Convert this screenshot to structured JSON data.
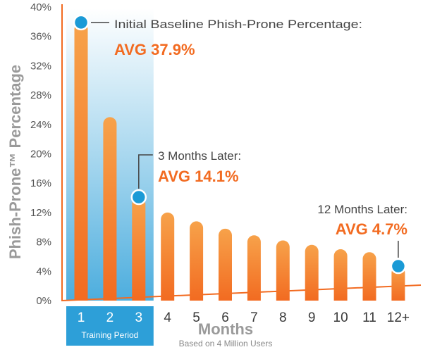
{
  "chart_data": {
    "type": "bar",
    "categories": [
      "1",
      "2",
      "3",
      "4",
      "5",
      "6",
      "7",
      "8",
      "9",
      "10",
      "11",
      "12+"
    ],
    "values": [
      37.9,
      25.0,
      14.1,
      12.0,
      10.8,
      9.8,
      8.9,
      8.2,
      7.6,
      7.0,
      6.6,
      4.7
    ],
    "ylim": [
      0,
      40
    ],
    "yticks": [
      "0%",
      "4%",
      "8%",
      "12%",
      "16%",
      "20%",
      "24%",
      "28%",
      "32%",
      "36%",
      "40%"
    ],
    "ylabel": "Phish-Prone™ Percentage",
    "xlabel": "Months",
    "xlabel_note": "Based on 4 Million Users",
    "training_period": {
      "label": "Training Period",
      "categories": [
        "1",
        "2",
        "3"
      ]
    },
    "annotations": [
      {
        "category": "1",
        "value": 37.9,
        "text": "Initial Baseline Phish-Prone Percentage:",
        "value_text": "AVG 37.9%"
      },
      {
        "category": "3",
        "value": 14.1,
        "text": "3 Months Later:",
        "value_text": "AVG 14.1%"
      },
      {
        "category": "12+",
        "value": 4.7,
        "text": "12 Months Later:",
        "value_text": "AVG 4.7%"
      }
    ],
    "colors": {
      "bar_top": "#f7a24a",
      "bar_bottom": "#f26b21",
      "marker": "#1a9ad6",
      "training_band": "#2d9fd8",
      "accent_text": "#f26b21",
      "axis": "#f26b21"
    },
    "grid": false,
    "legend": "none"
  }
}
